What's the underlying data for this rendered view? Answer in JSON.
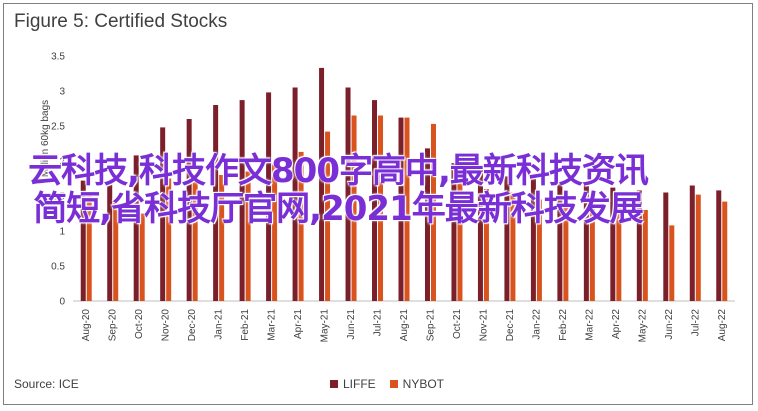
{
  "title": "Figure 5: Certified Stocks",
  "source": "Source: ICE",
  "overlay_text": "云科技,科技作文800字高中,最新科技资讯简短,省科技厅官网,2021年最新科技发展",
  "colors": {
    "LIFFE": "#7b1f2a",
    "NYBOT": "#d9531e"
  },
  "chart_data": {
    "type": "bar",
    "ylabel": "Million 60kg bags",
    "ylim": [
      0,
      3.5
    ],
    "yticks": [
      0,
      0.5,
      1,
      1.5,
      2,
      2.5,
      3,
      3.5
    ],
    "categories": [
      "Aug-20",
      "Sep-20",
      "Oct-20",
      "Nov-20",
      "Dec-20",
      "Jan-21",
      "Feb-21",
      "Mar-21",
      "Apr-21",
      "May-21",
      "Jun-21",
      "Jul-21",
      "Aug-21",
      "Sep-21",
      "Oct-21",
      "Nov-21",
      "Dec-21",
      "Jan-22",
      "Feb-22",
      "Mar-22",
      "Apr-22",
      "May-22",
      "Jun-22",
      "Jul-22",
      "Aug-22"
    ],
    "series": [
      {
        "name": "LIFFE",
        "values": [
          1.72,
          1.7,
          2.08,
          2.48,
          2.6,
          2.8,
          2.87,
          2.98,
          3.05,
          3.33,
          3.05,
          2.87,
          2.62,
          2.18,
          1.97,
          1.9,
          1.78,
          1.75,
          1.72,
          1.7,
          1.62,
          1.58,
          1.55,
          1.65,
          1.58
        ]
      },
      {
        "name": "NYBOT",
        "values": [
          1.55,
          1.4,
          1.25,
          1.75,
          1.78,
          1.8,
          1.85,
          1.95,
          2.13,
          2.42,
          2.65,
          2.65,
          2.62,
          2.53,
          2.02,
          1.6,
          1.55,
          1.45,
          1.42,
          1.38,
          1.33,
          1.3,
          1.08,
          1.52,
          1.42
        ]
      }
    ],
    "legend": [
      "LIFFE",
      "NYBOT"
    ],
    "legend_position": "bottom",
    "grid": false
  }
}
